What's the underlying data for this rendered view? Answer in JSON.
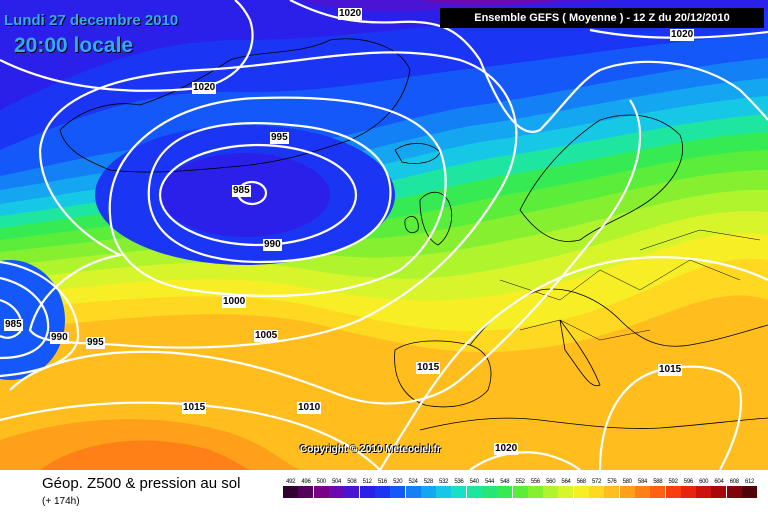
{
  "map": {
    "date_title": "Lundi 27 decembre 2010",
    "time_title": "20:00 locale",
    "run_info": "Ensemble GEFS ( Moyenne )  -  12 Z du 20/12/2010",
    "copyright": "Copyright © 2010 Meteociel.fr",
    "isobar_labels": {
      "top_1020": "1020",
      "top_right_1020": "1020",
      "nw_1020": "1020",
      "low_995": "995",
      "low_985": "985",
      "low_990": "990",
      "mid_1000": "1000",
      "mid_1005": "1005",
      "left_985": "985",
      "left_990": "990",
      "left_995": "995",
      "iberia_1015": "1015",
      "sw_1015": "1015",
      "mid_1010": "1010",
      "africa_1020": "1020",
      "east_1015": "1015"
    },
    "colors": {
      "contour": "#ffffff",
      "coastline": "#000000"
    }
  },
  "footer": {
    "product_title": "Géop. Z500 & pression au sol",
    "forecast_hour": "(+ 174h)"
  },
  "legend": {
    "values": [
      "492",
      "496",
      "500",
      "504",
      "508",
      "512",
      "516",
      "520",
      "524",
      "528",
      "532",
      "536",
      "540",
      "544",
      "548",
      "552",
      "556",
      "560",
      "564",
      "568",
      "572",
      "576",
      "580",
      "584",
      "588",
      "592",
      "596",
      "600",
      "604",
      "608",
      "612"
    ],
    "colors": [
      "#30002e",
      "#55005a",
      "#7a0085",
      "#6c0ab0",
      "#4a14d4",
      "#2a20ea",
      "#1a36f4",
      "#1458fa",
      "#1480f6",
      "#14a6f0",
      "#16c8e6",
      "#18e0c8",
      "#1ee6a0",
      "#26e678",
      "#36ea54",
      "#5aee3a",
      "#86f030",
      "#b0f42e",
      "#d8f42a",
      "#f8ee26",
      "#ffd822",
      "#ffbe1e",
      "#ffa01a",
      "#ff8016",
      "#ff6012",
      "#f83e10",
      "#e8240e",
      "#cc120c",
      "#a8080a",
      "#800408",
      "#500206"
    ]
  }
}
